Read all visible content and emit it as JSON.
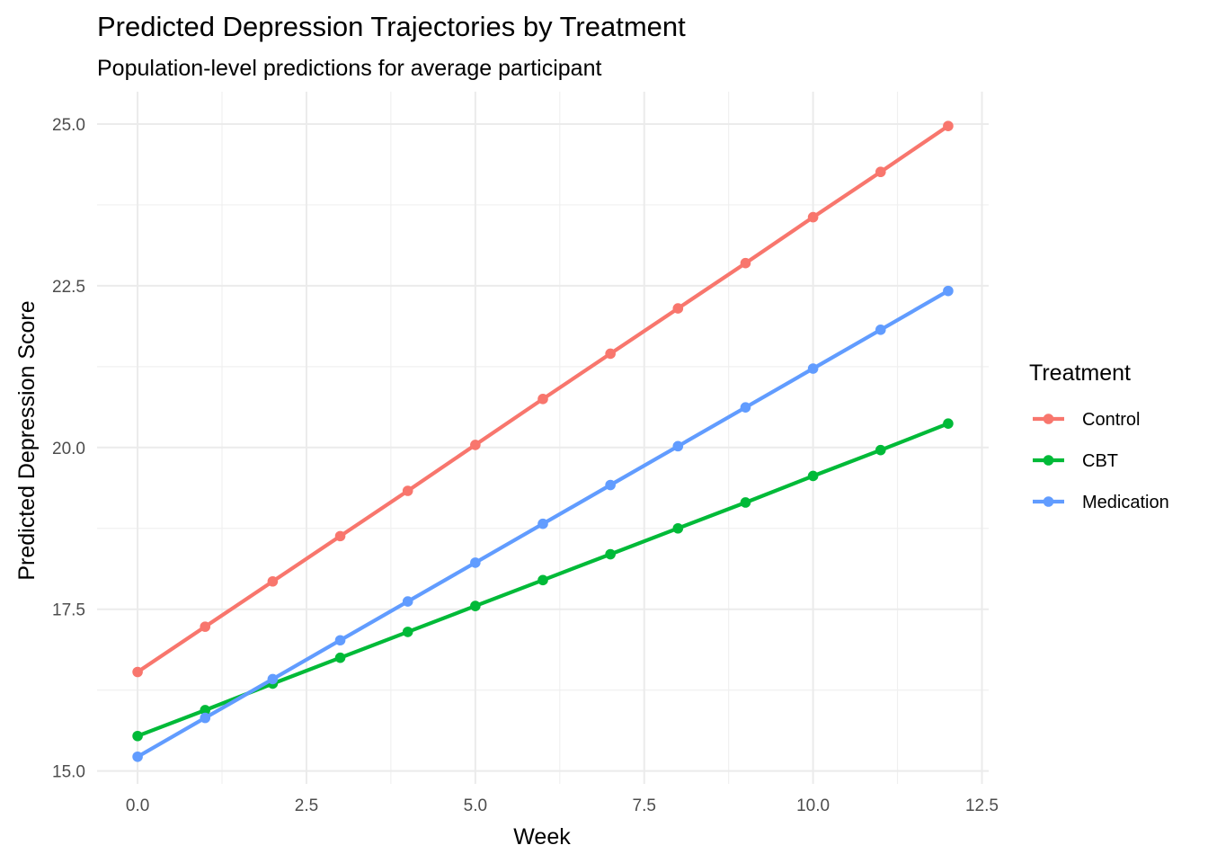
{
  "chart_data": {
    "type": "line",
    "title": "Predicted Depression Trajectories by Treatment",
    "subtitle": "Population-level predictions for average participant",
    "xlabel": "Week",
    "ylabel": "Predicted Depression Score",
    "xlim": [
      -0.6,
      12.6
    ],
    "ylim": [
      14.8,
      25.5
    ],
    "x_ticks": [
      0,
      2.5,
      5,
      7.5,
      10,
      12.5
    ],
    "x_tick_labels": [
      "0.0",
      "2.5",
      "5.0",
      "7.5",
      "10.0",
      "12.5"
    ],
    "y_ticks": [
      15,
      17.5,
      20,
      22.5,
      25
    ],
    "y_tick_labels": [
      "15.0",
      "17.5",
      "20.0",
      "22.5",
      "25.0"
    ],
    "grid": true,
    "legend_title": "Treatment",
    "legend_position": "right",
    "x": [
      0,
      1,
      2,
      3,
      4,
      5,
      6,
      7,
      8,
      9,
      10,
      11,
      12
    ],
    "series": [
      {
        "name": "Control",
        "color": "#F8766D",
        "values": [
          16.53,
          17.23,
          17.93,
          18.63,
          19.33,
          20.04,
          20.75,
          21.45,
          22.15,
          22.85,
          23.56,
          24.26,
          24.97
        ]
      },
      {
        "name": "CBT",
        "color": "#00BA38",
        "values": [
          15.54,
          15.94,
          16.35,
          16.75,
          17.15,
          17.55,
          17.95,
          18.35,
          18.75,
          19.15,
          19.56,
          19.96,
          20.37
        ]
      },
      {
        "name": "Medication",
        "color": "#619CFF",
        "values": [
          15.22,
          15.82,
          16.42,
          17.02,
          17.62,
          18.22,
          18.82,
          19.42,
          20.02,
          20.62,
          21.22,
          21.82,
          22.42
        ]
      }
    ]
  }
}
